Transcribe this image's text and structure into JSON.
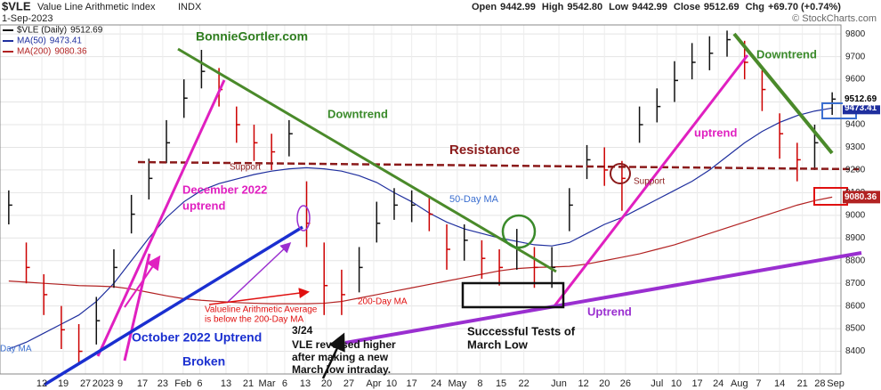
{
  "chart_data": {
    "type": "ohlc",
    "symbol": "$VLE",
    "title": "Value Line Arithmetic Index",
    "exchange": "INDX",
    "date": "1-Sep-2023",
    "quote": [
      {
        "label": "Open",
        "value": "9442.99"
      },
      {
        "label": "High",
        "value": "9542.80"
      },
      {
        "label": "Low",
        "value": "9442.99"
      },
      {
        "label": "Close",
        "value": "9512.69"
      },
      {
        "label": "Chg",
        "value": "+69.70 (+0.74%)"
      }
    ],
    "watermark": "© StockCharts.com",
    "price_name": "$VLE (Daily)",
    "high": [
      9110,
      8880,
      8740,
      8600,
      8520,
      8640,
      8850,
      9090,
      9250,
      9420,
      9600,
      9730,
      9650,
      9480,
      9400,
      9360,
      9420,
      9150,
      8880,
      8760,
      8860,
      9060,
      9120,
      9110,
      9080,
      8960,
      8960,
      8890,
      8850,
      8940,
      8860,
      8860,
      9120,
      9310,
      9300,
      9240,
      9480,
      9560,
      9680,
      9760,
      9790,
      9815,
      9770,
      9640,
      9450,
      9320,
      9400,
      9542.8
    ],
    "low": [
      8960,
      8700,
      8560,
      8410,
      8340,
      8430,
      8680,
      8920,
      9070,
      9230,
      9430,
      9560,
      9480,
      9320,
      9240,
      9200,
      9260,
      8860,
      8560,
      8560,
      8660,
      8880,
      8980,
      8970,
      8930,
      8760,
      8800,
      8720,
      8690,
      8760,
      8680,
      8680,
      8930,
      9160,
      9130,
      9020,
      9320,
      9410,
      9500,
      9600,
      9640,
      9700,
      9600,
      9460,
      9250,
      9150,
      9200,
      9442.99
    ],
    "close": [
      9045,
      8770,
      8650,
      8495,
      8400,
      8535,
      8770,
      9005,
      9163,
      9320,
      9517,
      9635,
      9555,
      9400,
      9320,
      9280,
      9360,
      8965,
      8690,
      8650,
      8770,
      8965,
      9045,
      9045,
      9005,
      8850,
      8890,
      8810,
      8770,
      8850,
      8770,
      8770,
      9045,
      9245,
      9200,
      9163,
      9400,
      9480,
      9595,
      9675,
      9715,
      9775,
      9675,
      9555,
      9360,
      9245,
      9320,
      9512.69
    ],
    "up_color": "#111111",
    "down_color": "#cc0000",
    "ma": [
      {
        "name": "MA(50)",
        "color": "#1f2f9e",
        "values": [
          8410,
          8440,
          8480,
          8520,
          8560,
          8620,
          8700,
          8800,
          8900,
          8990,
          9060,
          9110,
          9140,
          9160,
          9180,
          9195,
          9205,
          9210,
          9205,
          9195,
          9175,
          9145,
          9100,
          9060,
          9010,
          8970,
          8940,
          8920,
          8900,
          8885,
          8870,
          8865,
          8880,
          8920,
          8960,
          8990,
          9030,
          9070,
          9110,
          9150,
          9200,
          9260,
          9320,
          9370,
          9410,
          9440,
          9460,
          9473.41
        ]
      },
      {
        "name": "MA(200)",
        "color": "#b22222",
        "values": [
          8710,
          8705,
          8700,
          8695,
          8690,
          8688,
          8685,
          8675,
          8660,
          8645,
          8632,
          8625,
          8620,
          8615,
          8612,
          8610,
          8610,
          8610,
          8612,
          8620,
          8635,
          8650,
          8665,
          8680,
          8695,
          8710,
          8725,
          8740,
          8755,
          8765,
          8770,
          8772,
          8775,
          8785,
          8800,
          8815,
          8830,
          8850,
          8870,
          8895,
          8920,
          8945,
          8970,
          8995,
          9020,
          9045,
          9065,
          9080.36
        ]
      }
    ],
    "ylim": [
      8300,
      9840
    ],
    "yticks": [
      8400,
      8500,
      8600,
      8700,
      8800,
      8900,
      9000,
      9100,
      9200,
      9300,
      9400,
      9500,
      9600,
      9700,
      9800
    ],
    "xlim": [
      -0.5,
      47.5
    ],
    "xticks": [
      {
        "value": 1.89,
        "label": "12"
      },
      {
        "value": 3.11,
        "label": "19"
      },
      {
        "value": 4.38,
        "label": "27"
      },
      {
        "value": 5.39,
        "label": "2023"
      },
      {
        "value": 6.36,
        "label": "9"
      },
      {
        "value": 7.63,
        "label": "17"
      },
      {
        "value": 8.79,
        "label": "23"
      },
      {
        "value": 9.95,
        "label": "Feb"
      },
      {
        "value": 10.9,
        "label": "6"
      },
      {
        "value": 12.4,
        "label": "13"
      },
      {
        "value": 13.67,
        "label": "21"
      },
      {
        "value": 14.74,
        "label": "Mar"
      },
      {
        "value": 15.75,
        "label": "6"
      },
      {
        "value": 16.92,
        "label": "13"
      },
      {
        "value": 18.14,
        "label": "20"
      },
      {
        "value": 19.41,
        "label": "27"
      },
      {
        "value": 20.83,
        "label": "Apr"
      },
      {
        "value": 21.85,
        "label": "10"
      },
      {
        "value": 23.0,
        "label": "17"
      },
      {
        "value": 24.4,
        "label": "24"
      },
      {
        "value": 25.6,
        "label": "May"
      },
      {
        "value": 26.9,
        "label": "8"
      },
      {
        "value": 28.1,
        "label": "15"
      },
      {
        "value": 29.4,
        "label": "22"
      },
      {
        "value": 31.4,
        "label": "Jun"
      },
      {
        "value": 32.8,
        "label": "12"
      },
      {
        "value": 34.0,
        "label": "20"
      },
      {
        "value": 35.2,
        "label": "26"
      },
      {
        "value": 37.0,
        "label": "Jul"
      },
      {
        "value": 38.1,
        "label": "10"
      },
      {
        "value": 39.3,
        "label": "17"
      },
      {
        "value": 40.5,
        "label": "24"
      },
      {
        "value": 41.7,
        "label": "Aug"
      },
      {
        "value": 42.8,
        "label": "7"
      },
      {
        "value": 44.0,
        "label": "14"
      },
      {
        "value": 45.3,
        "label": "21"
      },
      {
        "value": 46.3,
        "label": "28"
      },
      {
        "value": 47.2,
        "label": "Sep"
      }
    ],
    "grid": true,
    "annotations": [
      {
        "text": "BonnieGortler.com",
        "color": "#2e7d1e"
      },
      {
        "text": "Downtrend",
        "color": "#3a8a2a"
      },
      {
        "text": "Resistance",
        "color": "#8b1a1a"
      },
      {
        "text": "Support",
        "color": "#8b1a1a"
      },
      {
        "text": "December 2022",
        "color": "#e020c0"
      },
      {
        "text": "uptrend",
        "color": "#e020c0"
      },
      {
        "text": "50-Day MA",
        "color": "#3b6fd0"
      },
      {
        "text": "Support",
        "color": "#8b1a1a"
      },
      {
        "text": "uptrend",
        "color": "#e020c0"
      },
      {
        "text": "Downtrend",
        "color": "#3a8a2a"
      },
      {
        "text": "Valueline Arithmetic Average",
        "color": "#e01010"
      },
      {
        "text": "is below the 200-Day MA",
        "color": "#e01010"
      },
      {
        "text": "200-Day MA",
        "color": "#e01010"
      },
      {
        "text": "October 2022 Uptrend",
        "color": "#1a2fd0"
      },
      {
        "text": "Broken",
        "color": "#1a2fd0"
      },
      {
        "text": "3/24",
        "color": "#111111"
      },
      {
        "text": "VLE reversed higher",
        "color": "#111111"
      },
      {
        "text": "after making a new",
        "color": "#111111"
      },
      {
        "text": "March low intraday.",
        "color": "#111111"
      },
      {
        "text": "Successful Tests of",
        "color": "#111111"
      },
      {
        "text": "March Low",
        "color": "#111111"
      },
      {
        "text": "Uptrend",
        "color": "#9a2fd0"
      },
      {
        "text": "Day MA",
        "color": "#3b6fd0"
      }
    ]
  }
}
